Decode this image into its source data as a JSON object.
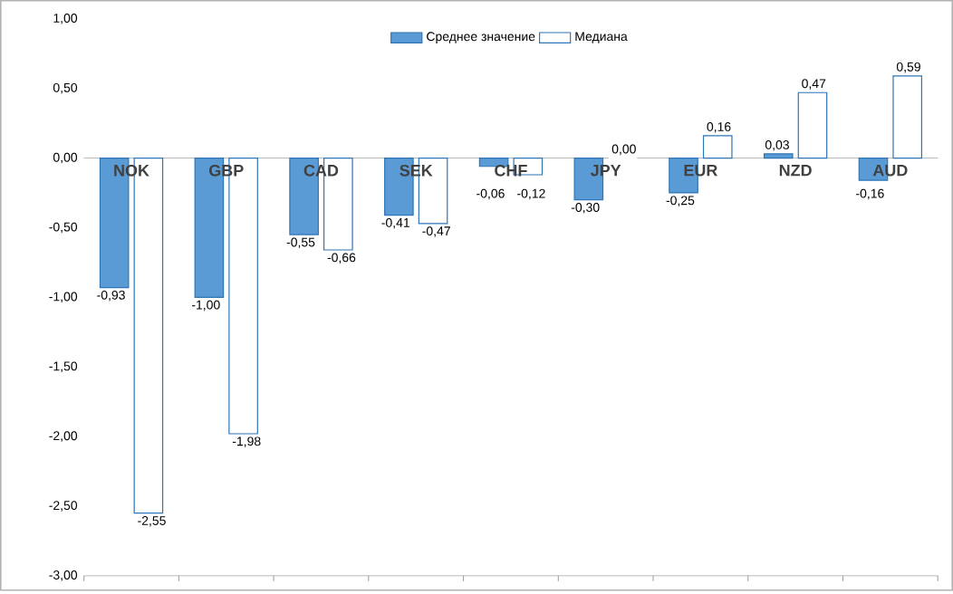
{
  "chart_data": {
    "type": "bar",
    "categories": [
      "NOK",
      "GBP",
      "CAD",
      "SEK",
      "CHF",
      "JPY",
      "EUR",
      "NZD",
      "AUD"
    ],
    "series": [
      {
        "name": "Среднее значение",
        "color": "#5b9bd5",
        "values": [
          -0.93,
          -1.0,
          -0.55,
          -0.41,
          -0.06,
          -0.3,
          -0.25,
          0.03,
          -0.16
        ],
        "value_labels": [
          "-0,93",
          "-1,00",
          "-0,55",
          "-0,41",
          "-0,06",
          "-0,30",
          "-0,25",
          "0,03",
          "-0,16"
        ]
      },
      {
        "name": "Медиана",
        "color": "#ffffff",
        "values": [
          -2.55,
          -1.98,
          -0.66,
          -0.47,
          -0.12,
          0.0,
          0.16,
          0.47,
          0.59
        ],
        "value_labels": [
          "-2,55",
          "-1,98",
          "-0,66",
          "-0,47",
          "-0,12",
          "0,00",
          "0,16",
          "0,47",
          "0,59"
        ]
      }
    ],
    "ylim": [
      -3,
      1
    ],
    "yticks": [
      {
        "value": -3,
        "label": "-3,00"
      },
      {
        "value": -2.5,
        "label": "-2,50"
      },
      {
        "value": -2,
        "label": "-2,00"
      },
      {
        "value": -1.5,
        "label": "-1,50"
      },
      {
        "value": -1,
        "label": "-1,00"
      },
      {
        "value": -0.5,
        "label": "-0,50"
      },
      {
        "value": 0,
        "label": "0,00"
      },
      {
        "value": 0.5,
        "label": "0,50"
      },
      {
        "value": 1,
        "label": "1,00"
      }
    ],
    "legend": "top"
  }
}
